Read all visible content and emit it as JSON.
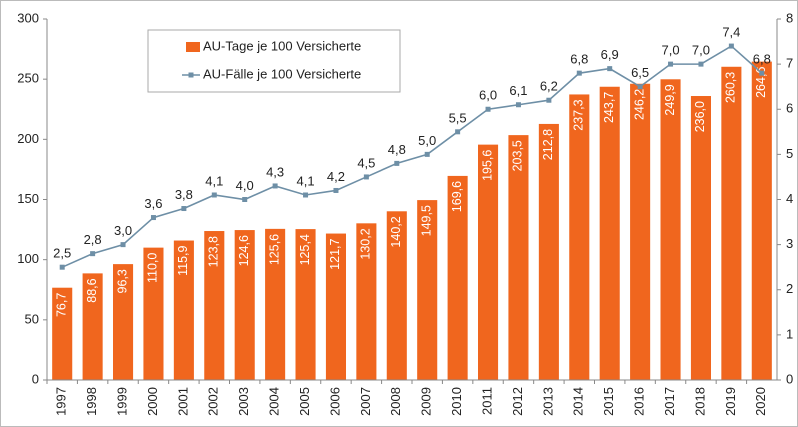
{
  "chart_data": {
    "type": "bar",
    "categories": [
      "1997",
      "1998",
      "1999",
      "2000",
      "2001",
      "2002",
      "2003",
      "2004",
      "2005",
      "2006",
      "2007",
      "2008",
      "2009",
      "2010",
      "2011",
      "2012",
      "2013",
      "2014",
      "2015",
      "2016",
      "2017",
      "2018",
      "2019",
      "2020"
    ],
    "series": [
      {
        "name": "AU-Tage je 100 Versicherte",
        "type": "bar",
        "color": "#f0661e",
        "values": [
          76.7,
          88.6,
          96.3,
          110.0,
          115.9,
          123.8,
          124.6,
          125.6,
          125.4,
          121.7,
          130.2,
          140.2,
          149.5,
          169.6,
          195.6,
          203.5,
          212.8,
          237.3,
          243.7,
          246.2,
          249.9,
          236.0,
          260.3,
          264.6
        ],
        "value_labels": [
          "76,7",
          "88,6",
          "96,3",
          "110,0",
          "115,9",
          "123,8",
          "124,6",
          "125,6",
          "125,4",
          "121,7",
          "130,2",
          "140,2",
          "149,5",
          "169,6",
          "195,6",
          "203,5",
          "212,8",
          "237,3",
          "243,7",
          "246,2",
          "249,9",
          "236,0",
          "260,3",
          "264,6"
        ]
      },
      {
        "name": "AU-Fälle je 100 Versicherte",
        "type": "line",
        "axis": "y2",
        "color": "#6e8fa6",
        "values": [
          2.5,
          2.8,
          3.0,
          3.6,
          3.8,
          4.1,
          4.0,
          4.3,
          4.1,
          4.2,
          4.5,
          4.8,
          5.0,
          5.5,
          6.0,
          6.1,
          6.2,
          6.8,
          6.9,
          6.5,
          7.0,
          7.0,
          7.4,
          6.8
        ],
        "value_labels": [
          "2,5",
          "2,8",
          "3,0",
          "3,6",
          "3,8",
          "4,1",
          "4,0",
          "4,3",
          "4,1",
          "4,2",
          "4,5",
          "4,8",
          "5,0",
          "5,5",
          "6,0",
          "6,1",
          "6,2",
          "6,8",
          "6,9",
          "6,5",
          "7,0",
          "7,0",
          "7,4",
          "6,8"
        ]
      }
    ],
    "ylim": [
      0,
      300
    ],
    "yticks": [
      0,
      50,
      100,
      150,
      200,
      250,
      300
    ],
    "y2lim": [
      0,
      8
    ],
    "y2ticks": [
      0,
      1,
      2,
      3,
      4,
      5,
      6,
      7,
      8
    ],
    "grid": false
  }
}
